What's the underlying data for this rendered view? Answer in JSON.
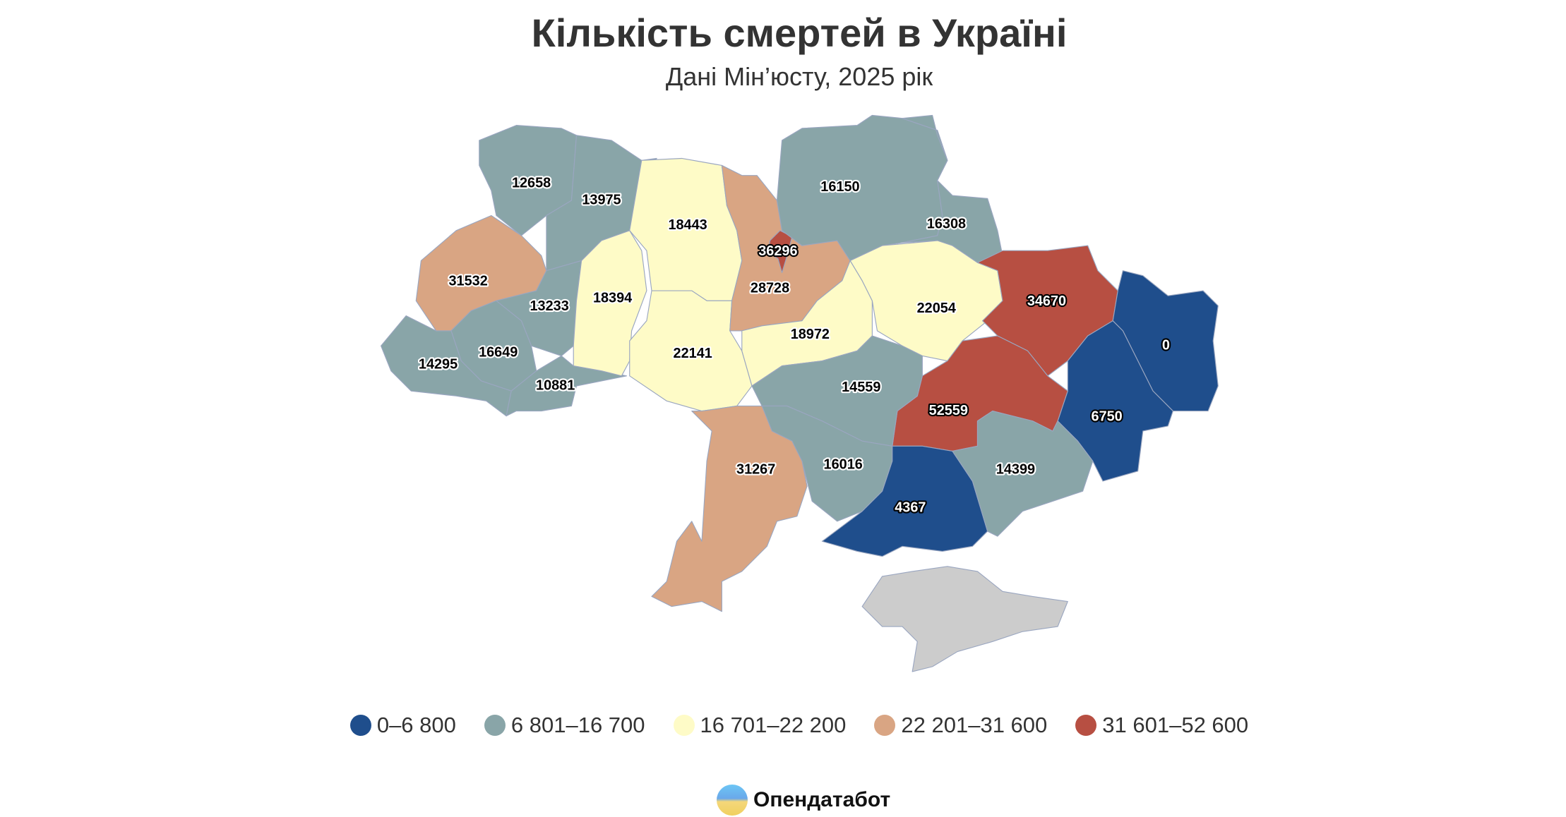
{
  "title": "Кількість смертей в Україні",
  "subtitle": "Дані Мін’юсту, 2025 рік",
  "legend": [
    {
      "label": "0–6 800",
      "color": "#1f4e8c"
    },
    {
      "label": "6 801–16 700",
      "color": "#89a5a8"
    },
    {
      "label": "16 701–22 200",
      "color": "#fefbc7"
    },
    {
      "label": "22 201–31 600",
      "color": "#d9a583"
    },
    {
      "label": "31 601–52 600",
      "color": "#b74f42"
    }
  ],
  "no_data_color": "#cccccc",
  "regions": [
    {
      "value": "12658"
    },
    {
      "value": "13975"
    },
    {
      "value": "31532"
    },
    {
      "value": "13233"
    },
    {
      "value": "16649"
    },
    {
      "value": "14295"
    },
    {
      "value": "10881"
    },
    {
      "value": "18394"
    },
    {
      "value": "18443"
    },
    {
      "value": "22141"
    },
    {
      "value": "28728"
    },
    {
      "value": "36296"
    },
    {
      "value": "16150"
    },
    {
      "value": "16308"
    },
    {
      "value": "18972"
    },
    {
      "value": "22054"
    },
    {
      "value": "34670"
    },
    {
      "value": "0"
    },
    {
      "value": "6750"
    },
    {
      "value": "52559"
    },
    {
      "value": "14559"
    },
    {
      "value": "16016"
    },
    {
      "value": "31267"
    },
    {
      "value": "4367"
    },
    {
      "value": "14399"
    }
  ],
  "logo": {
    "text": "Опендатабот",
    "icon": "opendatabot-logo-icon"
  }
}
